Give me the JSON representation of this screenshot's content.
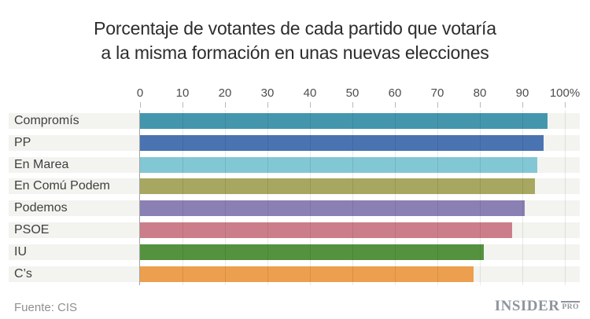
{
  "title": {
    "line1": "Porcentaje de votantes de cada partido que votaría",
    "line2": "a la misma formación en unas nuevas elecciones"
  },
  "chart_data": {
    "type": "bar",
    "orientation": "horizontal",
    "title": "Porcentaje de votantes de cada partido que votaría a la misma formación en unas nuevas elecciones",
    "categories": [
      "Compromís",
      "PP",
      "En Marea",
      "En Comú Podem",
      "Podemos",
      "PSOE",
      "IU",
      "C’s"
    ],
    "values": [
      96,
      95,
      93.5,
      93,
      90.5,
      87.5,
      81,
      78.5
    ],
    "colors": [
      "#4496ad",
      "#4a73b2",
      "#82c7d4",
      "#a7a761",
      "#8b80b4",
      "#cb7e89",
      "#55923f",
      "#ec9f4e"
    ],
    "xlim": [
      0,
      100
    ],
    "x_tick_labels": [
      "0",
      "10",
      "20",
      "30",
      "40",
      "50",
      "60",
      "70",
      "80",
      "90",
      "100%"
    ],
    "grid": "vertical",
    "legend": "none"
  },
  "footer": {
    "source": "Fuente: CIS",
    "logo_main": "INSIDER",
    "logo_sub": "PRO"
  },
  "colors": {
    "row_band": "#f3f3f0",
    "axis_text": "#4d4d4d",
    "title_text": "#2d2d2d",
    "source_text": "#8f8f8f",
    "logo": "#8e959c"
  }
}
